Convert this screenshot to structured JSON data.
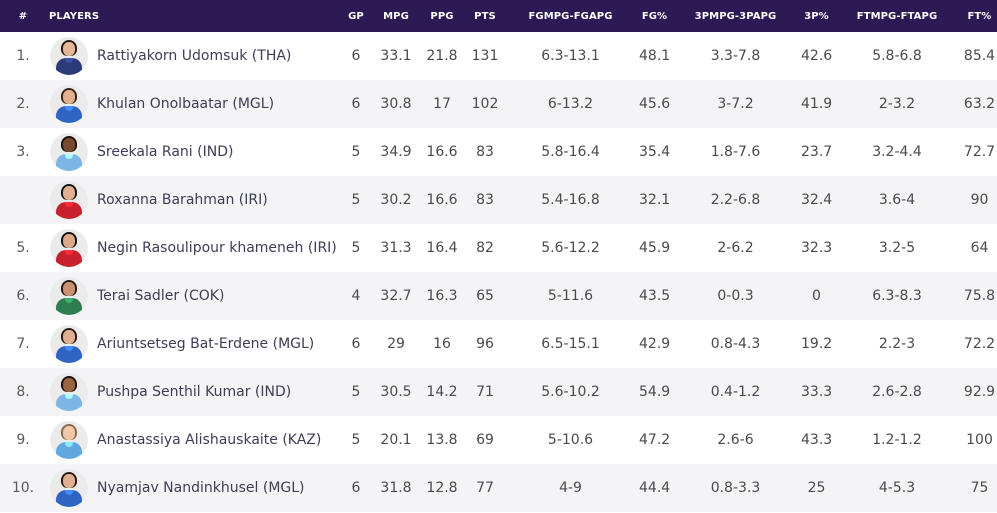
{
  "table": {
    "headers": {
      "rank": "#",
      "player": "PLAYERS",
      "gp": "GP",
      "mpg": "MPG",
      "ppg": "PPG",
      "pts": "PTS",
      "fgm_fga": "FGMPG-FGAPG",
      "fg_pct": "FG%",
      "tpm_tpa": "3PMPG-3PAPG",
      "tp_pct": "3P%",
      "ftm_fta": "FTMPG-FTAPG",
      "ft_pct": "FT%"
    },
    "rows": [
      {
        "rank": "1.",
        "name": "Rattiyakorn Udomsuk (THA)",
        "gp": "6",
        "mpg": "33.1",
        "ppg": "21.8",
        "pts": "131",
        "fgm_fga": "6.3-13.1",
        "fg_pct": "48.1",
        "tpm_tpa": "3.3-7.8",
        "tp_pct": "42.6",
        "ftm_fta": "5.8-6.8",
        "ft_pct": "85.4",
        "skin": "#e6b796",
        "hair": "#2a1a12",
        "jersey": "#2b3a78"
      },
      {
        "rank": "2.",
        "name": "Khulan Onolbaatar (MGL)",
        "gp": "6",
        "mpg": "30.8",
        "ppg": "17",
        "pts": "102",
        "fgm_fga": "6-13.2",
        "fg_pct": "45.6",
        "tpm_tpa": "3-7.2",
        "tp_pct": "41.9",
        "ftm_fta": "2-3.2",
        "ft_pct": "63.2",
        "skin": "#e2b08e",
        "hair": "#3a2418",
        "jersey": "#2f63c4"
      },
      {
        "rank": "3.",
        "name": "Sreekala Rani (IND)",
        "gp": "5",
        "mpg": "34.9",
        "ppg": "16.6",
        "pts": "83",
        "fgm_fga": "5.8-16.4",
        "fg_pct": "35.4",
        "tpm_tpa": "1.8-7.6",
        "tp_pct": "23.7",
        "ftm_fta": "3.2-4.4",
        "ft_pct": "72.7",
        "skin": "#7a4a2e",
        "hair": "#1a100c",
        "jersey": "#7db6e6"
      },
      {
        "rank": "",
        "name": "Roxanna Barahman (IRI)",
        "gp": "5",
        "mpg": "30.2",
        "ppg": "16.6",
        "pts": "83",
        "fgm_fga": "5.4-16.8",
        "fg_pct": "32.1",
        "tpm_tpa": "2.2-6.8",
        "tp_pct": "32.4",
        "ftm_fta": "3.6-4",
        "ft_pct": "90",
        "skin": "#e0b090",
        "hair": "#151515",
        "jersey": "#c8202c"
      },
      {
        "rank": "5.",
        "name": "Negin Rasoulipour khameneh (IRI)",
        "gp": "5",
        "mpg": "31.3",
        "ppg": "16.4",
        "pts": "82",
        "fgm_fga": "5.6-12.2",
        "fg_pct": "45.9",
        "tpm_tpa": "2-6.2",
        "tp_pct": "32.3",
        "ftm_fta": "3.2-5",
        "ft_pct": "64",
        "skin": "#dcaa88",
        "hair": "#151515",
        "jersey": "#c8202c"
      },
      {
        "rank": "6.",
        "name": "Terai Sadler (COK)",
        "gp": "4",
        "mpg": "32.7",
        "ppg": "16.3",
        "pts": "65",
        "fgm_fga": "5-11.6",
        "fg_pct": "43.5",
        "tpm_tpa": "0-0.3",
        "tp_pct": "0",
        "ftm_fta": "6.3-8.3",
        "ft_pct": "75.8",
        "skin": "#c99270",
        "hair": "#2a1c14",
        "jersey": "#2e7d4f"
      },
      {
        "rank": "7.",
        "name": "Ariuntsetseg Bat-Erdene (MGL)",
        "gp": "6",
        "mpg": "29",
        "ppg": "16",
        "pts": "96",
        "fgm_fga": "6.5-15.1",
        "fg_pct": "42.9",
        "tpm_tpa": "0.8-4.3",
        "tp_pct": "19.2",
        "ftm_fta": "2.2-3",
        "ft_pct": "72.2",
        "skin": "#e0b090",
        "hair": "#2c1c14",
        "jersey": "#2f63c4"
      },
      {
        "rank": "8.",
        "name": "Pushpa Senthil Kumar (IND)",
        "gp": "5",
        "mpg": "30.5",
        "ppg": "14.2",
        "pts": "71",
        "fgm_fga": "5.6-10.2",
        "fg_pct": "54.9",
        "tpm_tpa": "0.4-1.2",
        "tp_pct": "33.3",
        "ftm_fta": "2.6-2.8",
        "ft_pct": "92.9",
        "skin": "#9a6440",
        "hair": "#1a100c",
        "jersey": "#7db6e6"
      },
      {
        "rank": "9.",
        "name": "Anastassiya Alishauskaite (KAZ)",
        "gp": "5",
        "mpg": "20.1",
        "ppg": "13.8",
        "pts": "69",
        "fgm_fga": "5-10.6",
        "fg_pct": "47.2",
        "tpm_tpa": "2.6-6",
        "tp_pct": "43.3",
        "ftm_fta": "1.2-1.2",
        "ft_pct": "100",
        "skin": "#f0c8a8",
        "hair": "#8a6a48",
        "jersey": "#5fa8e0"
      },
      {
        "rank": "10.",
        "name": "Nyamjav Nandinkhusel (MGL)",
        "gp": "6",
        "mpg": "31.8",
        "ppg": "12.8",
        "pts": "77",
        "fgm_fga": "4-9",
        "fg_pct": "44.4",
        "tpm_tpa": "0.8-3.3",
        "tp_pct": "25",
        "ftm_fta": "4-5.3",
        "ft_pct": "75",
        "skin": "#e0b090",
        "hair": "#2c1c14",
        "jersey": "#2f63c4"
      }
    ]
  }
}
